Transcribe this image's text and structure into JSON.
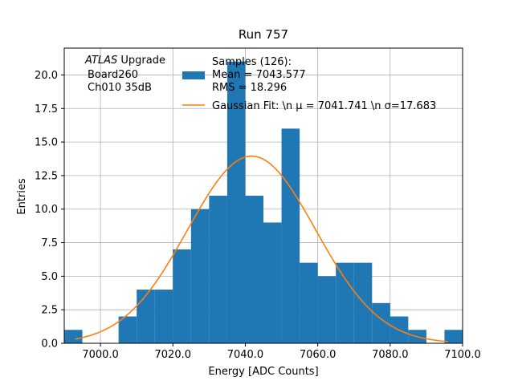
{
  "chart_data": {
    "type": "bar",
    "title": "Run 757",
    "xlabel": "Energy [ADC Counts]",
    "ylabel": "Entries",
    "xlim": [
      6990.0,
      7100.0
    ],
    "ylim": [
      0,
      22
    ],
    "x_ticks": [
      7000,
      7020,
      7040,
      7060,
      7080,
      7100
    ],
    "x_tick_labels": [
      "7000.0",
      "7020.0",
      "7040.0",
      "7060.0",
      "7080.0",
      "7100.0"
    ],
    "y_ticks": [
      0,
      2.5,
      5,
      7.5,
      10,
      12.5,
      15,
      17.5,
      20
    ],
    "y_tick_labels": [
      "0.0",
      "2.5",
      "5.0",
      "7.5",
      "10.0",
      "12.5",
      "15.0",
      "17.5",
      "20.0"
    ],
    "grid": true,
    "histogram": {
      "name": "Samples (126)",
      "color": "#1f77b4",
      "bin_edges": [
        6990.0,
        6995.0,
        7000.0,
        7005.0,
        7010.0,
        7015.0,
        7020.0,
        7025.0,
        7030.0,
        7035.0,
        7040.0,
        7045.0,
        7050.0,
        7055.0,
        7060.0,
        7065.0,
        7070.0,
        7075.0,
        7080.0,
        7085.0,
        7090.0,
        7095.0,
        7100.0
      ],
      "counts": [
        1,
        0,
        0,
        2,
        4,
        4,
        7,
        10,
        11,
        21,
        11,
        9,
        16,
        6,
        5,
        6,
        6,
        3,
        2,
        1,
        0,
        1
      ]
    },
    "fit": {
      "name": "Gaussian Fit",
      "color": "#ff7f0e",
      "amplitude": 13.95,
      "mu": 7041.741,
      "sigma": 17.683,
      "x_range": [
        6993.0,
        7096.0
      ]
    },
    "annotation": {
      "lines": [
        "ATLAS Upgrade",
        "Board260",
        "Ch010 35dB"
      ]
    },
    "legend": {
      "placement": "top-right",
      "entries": [
        {
          "lines": [
            "Samples (126):",
            "Mean = 7043.577",
            "RMS = 18.296"
          ],
          "kind": "bar",
          "color": "#1f77b4"
        },
        {
          "lines": [
            "Gaussian Fit: \\n μ = 7041.741 \\n σ=17.683"
          ],
          "kind": "line",
          "color": "#ff7f0e"
        }
      ]
    }
  }
}
